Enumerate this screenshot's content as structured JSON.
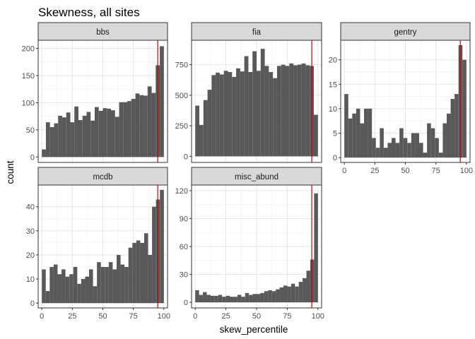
{
  "chart_data": {
    "type": "histogram-facets",
    "title": "Skewness, all sites",
    "xlabel": "skew_percentile",
    "ylabel": "count",
    "x_ticks": [
      0,
      25,
      50,
      75,
      100
    ],
    "xlim": [
      -3,
      103
    ],
    "bin_width": 3.33,
    "reference_line": {
      "x": 95,
      "color": "#cc0000"
    },
    "grid": true,
    "bar_color": "#595959",
    "strip_color": "#d9d9d9",
    "facets": [
      {
        "name": "bbs",
        "ylim": [
          -10,
          215
        ],
        "y_ticks": [
          0,
          50,
          100,
          150,
          200
        ],
        "values": [
          14,
          64,
          55,
          62,
          76,
          73,
          82,
          64,
          93,
          68,
          76,
          83,
          67,
          92,
          85,
          90,
          89,
          86,
          74,
          101,
          101,
          103,
          107,
          117,
          114,
          113,
          130,
          118,
          169,
          204
        ]
      },
      {
        "name": "fia",
        "ylim": [
          -50,
          950
        ],
        "y_ticks": [
          0,
          250,
          500,
          750
        ],
        "values": [
          415,
          257,
          460,
          545,
          665,
          685,
          670,
          700,
          690,
          650,
          720,
          695,
          820,
          690,
          860,
          700,
          880,
          740,
          690,
          640,
          740,
          750,
          740,
          760,
          745,
          750,
          760,
          745,
          740,
          340
        ]
      },
      {
        "name": "gentry",
        "ylim": [
          -1,
          24
        ],
        "y_ticks": [
          0,
          5,
          10,
          15,
          20
        ],
        "values": [
          13,
          8,
          9,
          10,
          7,
          10,
          10,
          4,
          2,
          6,
          2,
          3,
          4,
          3,
          6,
          4,
          3,
          5,
          5,
          3,
          1,
          7,
          6,
          4,
          1,
          7,
          9,
          12,
          13,
          23,
          20
        ]
      },
      {
        "name": "mcdb",
        "ylim": [
          -2,
          49
        ],
        "y_ticks": [
          0,
          10,
          20,
          30,
          40
        ],
        "values": [
          14,
          5,
          15,
          16,
          12,
          14,
          11,
          12,
          15,
          8,
          10,
          11,
          14,
          7,
          17,
          15,
          15,
          17,
          14,
          20,
          16,
          15,
          23,
          25,
          26,
          25,
          29,
          20,
          40,
          43,
          47
        ]
      },
      {
        "name": "misc_abund",
        "ylim": [
          -6,
          126
        ],
        "y_ticks": [
          0,
          30,
          60,
          90,
          120
        ],
        "values": [
          13,
          8,
          11,
          8,
          7,
          7,
          8,
          6,
          7,
          6,
          6,
          8,
          6,
          10,
          8,
          9,
          9,
          10,
          12,
          13,
          12,
          14,
          16,
          18,
          17,
          20,
          17,
          22,
          26,
          34,
          46,
          117
        ]
      }
    ]
  }
}
